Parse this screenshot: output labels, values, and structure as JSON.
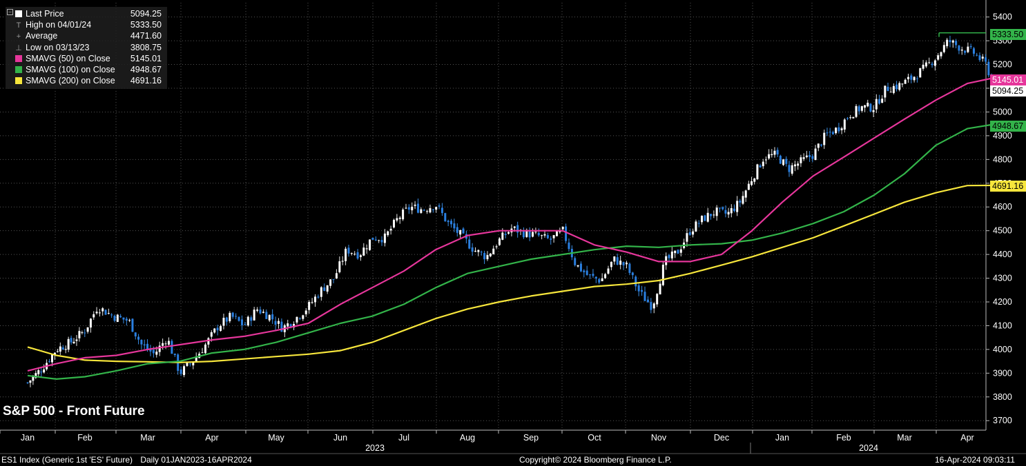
{
  "chart_data": {
    "type": "candlestick",
    "title": "S&P 500 - Front Future",
    "security": "ES1 Index (Generic 1st 'ES' Future)",
    "period": "Daily 01JAN2023-16APR2024",
    "copyright": "Copyright© 2024 Bloomberg Finance L.P.",
    "timestamp": "16-Apr-2024 09:03:11",
    "legend": [
      {
        "label": "Last Price",
        "value": "5094.25",
        "color": "#ffffff",
        "glyph": "square"
      },
      {
        "label": "High on 04/01/24",
        "value": "5333.50",
        "glyph": "T"
      },
      {
        "label": "Average",
        "value": "4471.60",
        "glyph": "+"
      },
      {
        "label": "Low on 03/13/23",
        "value": "3808.75",
        "glyph": "⊥"
      },
      {
        "label": "SMAVG (50)  on Close",
        "value": "5145.01",
        "color": "#e6369b",
        "glyph": "square"
      },
      {
        "label": "SMAVG (100)  on Close",
        "value": "4948.67",
        "color": "#33b44a",
        "glyph": "square"
      },
      {
        "label": "SMAVG (200)  on Close",
        "value": "4691.16",
        "color": "#f7e63c",
        "glyph": "square"
      }
    ],
    "y_axis": {
      "ticks": [
        "3700",
        "3800",
        "3900",
        "4000",
        "4100",
        "4200",
        "4300",
        "4400",
        "4500",
        "4600",
        "4700",
        "4800",
        "4900",
        "5000",
        "5100",
        "5200",
        "5300",
        "5400"
      ],
      "ylim": [
        3660,
        5460
      ]
    },
    "x_axis": {
      "months": [
        "Jan",
        "Feb",
        "Mar",
        "Apr",
        "May",
        "Jun",
        "Jul",
        "Aug",
        "Sep",
        "Oct",
        "Nov",
        "Dec",
        "Jan",
        "Feb",
        "Mar",
        "Apr"
      ],
      "years": [
        "2023",
        "2024"
      ]
    },
    "tags": [
      {
        "value": "5333.50",
        "bg": "#33b44a",
        "fg": "#000000"
      },
      {
        "value": "5145.01",
        "bg": "#e6369b",
        "fg": "#ffffff"
      },
      {
        "value": "5094.25",
        "bg": "#ffffff",
        "fg": "#000000"
      },
      {
        "value": "4948.67",
        "bg": "#33b44a",
        "fg": "#000000"
      },
      {
        "value": "4691.16",
        "bg": "#f7e63c",
        "fg": "#000000"
      }
    ],
    "close_weekly": [
      {
        "m": 0.0,
        "v": 3860
      },
      {
        "m": 0.25,
        "v": 3920
      },
      {
        "m": 0.5,
        "v": 4000
      },
      {
        "m": 0.75,
        "v": 4030
      },
      {
        "m": 1.0,
        "v": 4080
      },
      {
        "m": 1.2,
        "v": 4180
      },
      {
        "m": 1.45,
        "v": 4140
      },
      {
        "m": 1.7,
        "v": 4120
      },
      {
        "m": 1.9,
        "v": 4020
      },
      {
        "m": 2.1,
        "v": 3980
      },
      {
        "m": 2.3,
        "v": 4050
      },
      {
        "m": 2.5,
        "v": 3900
      },
      {
        "m": 2.7,
        "v": 3950
      },
      {
        "m": 2.9,
        "v": 4020
      },
      {
        "m": 3.1,
        "v": 4100
      },
      {
        "m": 3.3,
        "v": 4140
      },
      {
        "m": 3.5,
        "v": 4100
      },
      {
        "m": 3.7,
        "v": 4170
      },
      {
        "m": 3.9,
        "v": 4140
      },
      {
        "m": 4.1,
        "v": 4090
      },
      {
        "m": 4.3,
        "v": 4130
      },
      {
        "m": 4.5,
        "v": 4180
      },
      {
        "m": 4.7,
        "v": 4250
      },
      {
        "m": 4.9,
        "v": 4300
      },
      {
        "m": 5.1,
        "v": 4420
      },
      {
        "m": 5.3,
        "v": 4400
      },
      {
        "m": 5.5,
        "v": 4470
      },
      {
        "m": 5.7,
        "v": 4470
      },
      {
        "m": 5.9,
        "v": 4550
      },
      {
        "m": 6.1,
        "v": 4600
      },
      {
        "m": 6.3,
        "v": 4590
      },
      {
        "m": 6.5,
        "v": 4610
      },
      {
        "m": 6.7,
        "v": 4530
      },
      {
        "m": 6.9,
        "v": 4480
      },
      {
        "m": 7.1,
        "v": 4420
      },
      {
        "m": 7.3,
        "v": 4390
      },
      {
        "m": 7.5,
        "v": 4460
      },
      {
        "m": 7.7,
        "v": 4510
      },
      {
        "m": 7.9,
        "v": 4490
      },
      {
        "m": 8.1,
        "v": 4480
      },
      {
        "m": 8.3,
        "v": 4460
      },
      {
        "m": 8.5,
        "v": 4500
      },
      {
        "m": 8.7,
        "v": 4360
      },
      {
        "m": 8.9,
        "v": 4310
      },
      {
        "m": 9.1,
        "v": 4290
      },
      {
        "m": 9.3,
        "v": 4380
      },
      {
        "m": 9.5,
        "v": 4350
      },
      {
        "m": 9.7,
        "v": 4240
      },
      {
        "m": 9.9,
        "v": 4180
      },
      {
        "m": 10.1,
        "v": 4370
      },
      {
        "m": 10.3,
        "v": 4410
      },
      {
        "m": 10.5,
        "v": 4500
      },
      {
        "m": 10.7,
        "v": 4550
      },
      {
        "m": 10.9,
        "v": 4580
      },
      {
        "m": 11.1,
        "v": 4570
      },
      {
        "m": 11.3,
        "v": 4620
      },
      {
        "m": 11.5,
        "v": 4720
      },
      {
        "m": 11.7,
        "v": 4810
      },
      {
        "m": 11.9,
        "v": 4820
      },
      {
        "m": 12.1,
        "v": 4760
      },
      {
        "m": 12.3,
        "v": 4790
      },
      {
        "m": 12.5,
        "v": 4820
      },
      {
        "m": 12.7,
        "v": 4900
      },
      {
        "m": 12.9,
        "v": 4930
      },
      {
        "m": 13.1,
        "v": 4990
      },
      {
        "m": 13.3,
        "v": 5020
      },
      {
        "m": 13.5,
        "v": 5020
      },
      {
        "m": 13.7,
        "v": 5100
      },
      {
        "m": 13.9,
        "v": 5110
      },
      {
        "m": 14.1,
        "v": 5140
      },
      {
        "m": 14.3,
        "v": 5180
      },
      {
        "m": 14.5,
        "v": 5230
      },
      {
        "m": 14.7,
        "v": 5300
      },
      {
        "m": 14.9,
        "v": 5270
      },
      {
        "m": 15.1,
        "v": 5250
      },
      {
        "m": 15.3,
        "v": 5200
      },
      {
        "m": 15.45,
        "v": 5094
      }
    ],
    "sma50": [
      {
        "m": 0.0,
        "v": 3910
      },
      {
        "m": 0.5,
        "v": 3940
      },
      {
        "m": 1.0,
        "v": 3965
      },
      {
        "m": 1.5,
        "v": 3975
      },
      {
        "m": 2.0,
        "v": 4000
      },
      {
        "m": 2.5,
        "v": 4020
      },
      {
        "m": 3.0,
        "v": 4040
      },
      {
        "m": 3.5,
        "v": 4055
      },
      {
        "m": 4.0,
        "v": 4080
      },
      {
        "m": 4.5,
        "v": 4110
      },
      {
        "m": 5.0,
        "v": 4190
      },
      {
        "m": 5.5,
        "v": 4260
      },
      {
        "m": 6.0,
        "v": 4330
      },
      {
        "m": 6.5,
        "v": 4420
      },
      {
        "m": 7.0,
        "v": 4480
      },
      {
        "m": 7.5,
        "v": 4500
      },
      {
        "m": 8.0,
        "v": 4500
      },
      {
        "m": 8.5,
        "v": 4500
      },
      {
        "m": 9.0,
        "v": 4440
      },
      {
        "m": 9.5,
        "v": 4410
      },
      {
        "m": 10.0,
        "v": 4370
      },
      {
        "m": 10.5,
        "v": 4370
      },
      {
        "m": 11.0,
        "v": 4400
      },
      {
        "m": 11.5,
        "v": 4500
      },
      {
        "m": 12.0,
        "v": 4620
      },
      {
        "m": 12.5,
        "v": 4730
      },
      {
        "m": 13.0,
        "v": 4810
      },
      {
        "m": 13.5,
        "v": 4890
      },
      {
        "m": 14.0,
        "v": 4970
      },
      {
        "m": 14.5,
        "v": 5050
      },
      {
        "m": 15.0,
        "v": 5120
      },
      {
        "m": 15.45,
        "v": 5145
      }
    ],
    "sma100": [
      {
        "m": 0.0,
        "v": 3890
      },
      {
        "m": 0.5,
        "v": 3875
      },
      {
        "m": 1.0,
        "v": 3885
      },
      {
        "m": 1.5,
        "v": 3910
      },
      {
        "m": 2.0,
        "v": 3940
      },
      {
        "m": 2.5,
        "v": 3950
      },
      {
        "m": 3.0,
        "v": 3985
      },
      {
        "m": 3.5,
        "v": 4000
      },
      {
        "m": 4.0,
        "v": 4030
      },
      {
        "m": 4.5,
        "v": 4070
      },
      {
        "m": 5.0,
        "v": 4110
      },
      {
        "m": 5.5,
        "v": 4140
      },
      {
        "m": 6.0,
        "v": 4190
      },
      {
        "m": 6.5,
        "v": 4260
      },
      {
        "m": 7.0,
        "v": 4320
      },
      {
        "m": 7.5,
        "v": 4350
      },
      {
        "m": 8.0,
        "v": 4380
      },
      {
        "m": 8.5,
        "v": 4400
      },
      {
        "m": 9.0,
        "v": 4420
      },
      {
        "m": 9.5,
        "v": 4435
      },
      {
        "m": 10.0,
        "v": 4430
      },
      {
        "m": 10.5,
        "v": 4440
      },
      {
        "m": 11.0,
        "v": 4445
      },
      {
        "m": 11.5,
        "v": 4460
      },
      {
        "m": 12.0,
        "v": 4490
      },
      {
        "m": 12.5,
        "v": 4530
      },
      {
        "m": 13.0,
        "v": 4580
      },
      {
        "m": 13.5,
        "v": 4650
      },
      {
        "m": 14.0,
        "v": 4740
      },
      {
        "m": 14.5,
        "v": 4860
      },
      {
        "m": 15.0,
        "v": 4930
      },
      {
        "m": 15.45,
        "v": 4949
      }
    ],
    "sma200": [
      {
        "m": 0.0,
        "v": 4010
      },
      {
        "m": 0.5,
        "v": 3975
      },
      {
        "m": 1.0,
        "v": 3955
      },
      {
        "m": 1.5,
        "v": 3950
      },
      {
        "m": 2.0,
        "v": 3948
      },
      {
        "m": 2.5,
        "v": 3945
      },
      {
        "m": 3.0,
        "v": 3950
      },
      {
        "m": 3.5,
        "v": 3960
      },
      {
        "m": 4.0,
        "v": 3970
      },
      {
        "m": 4.5,
        "v": 3980
      },
      {
        "m": 5.0,
        "v": 3995
      },
      {
        "m": 5.5,
        "v": 4030
      },
      {
        "m": 6.0,
        "v": 4080
      },
      {
        "m": 6.5,
        "v": 4130
      },
      {
        "m": 7.0,
        "v": 4170
      },
      {
        "m": 7.5,
        "v": 4200
      },
      {
        "m": 8.0,
        "v": 4225
      },
      {
        "m": 8.5,
        "v": 4245
      },
      {
        "m": 9.0,
        "v": 4265
      },
      {
        "m": 9.5,
        "v": 4275
      },
      {
        "m": 10.0,
        "v": 4290
      },
      {
        "m": 10.5,
        "v": 4320
      },
      {
        "m": 11.0,
        "v": 4355
      },
      {
        "m": 11.5,
        "v": 4390
      },
      {
        "m": 12.0,
        "v": 4430
      },
      {
        "m": 12.5,
        "v": 4470
      },
      {
        "m": 13.0,
        "v": 4520
      },
      {
        "m": 13.5,
        "v": 4570
      },
      {
        "m": 14.0,
        "v": 4620
      },
      {
        "m": 14.5,
        "v": 4660
      },
      {
        "m": 15.0,
        "v": 4690
      },
      {
        "m": 15.45,
        "v": 4691
      }
    ]
  }
}
